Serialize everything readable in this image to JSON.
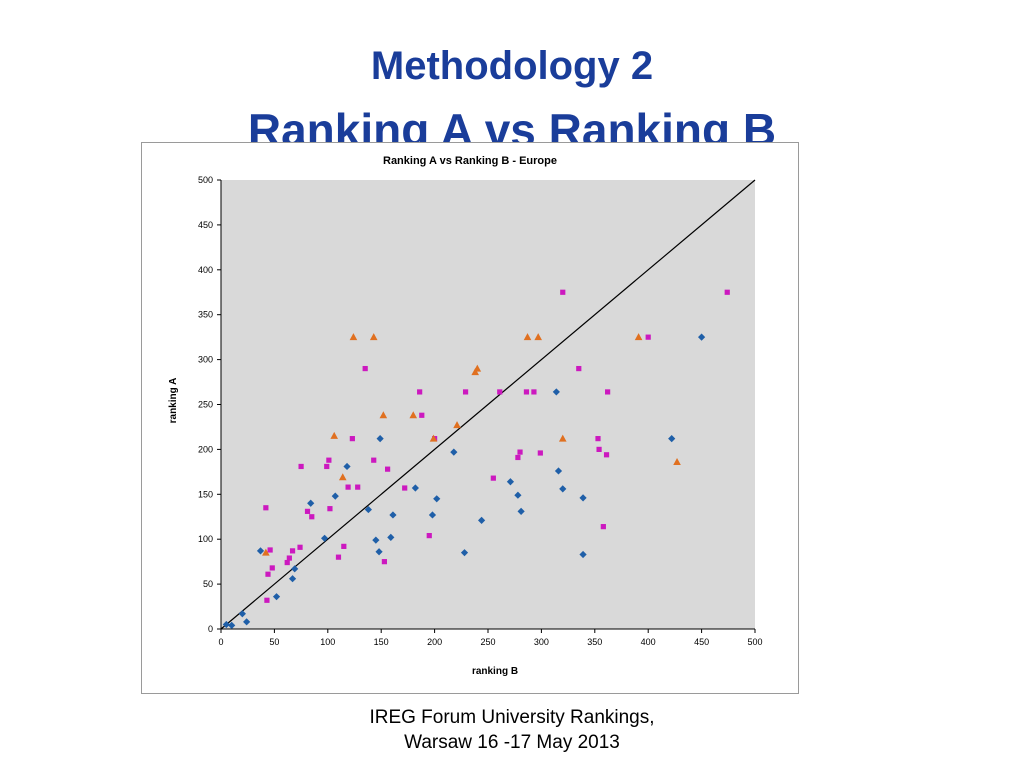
{
  "slide": {
    "title_line1": "Methodology 2",
    "title_line2": "Ranking A vs Ranking B",
    "footer_line1": "IREG Forum University Rankings,",
    "footer_line2": "Warsaw 16 -17 May 2013"
  },
  "chart_data": {
    "type": "scatter",
    "title": "Ranking A vs Ranking B - Europe",
    "xlabel": "ranking B",
    "ylabel": "ranking A",
    "xlim": [
      0,
      500
    ],
    "ylim": [
      0,
      500
    ],
    "xticks": [
      0,
      50,
      100,
      150,
      200,
      250,
      300,
      350,
      400,
      450,
      500
    ],
    "yticks": [
      0,
      50,
      100,
      150,
      200,
      250,
      300,
      350,
      400,
      450,
      500
    ],
    "plot_background": "#d9d9d9",
    "legend": "none",
    "reference_line": {
      "from": [
        0,
        0
      ],
      "to": [
        500,
        500
      ],
      "color": "#000000"
    },
    "series": [
      {
        "marker": "diamond",
        "color": "#1f5fa8",
        "points": [
          [
            5,
            5
          ],
          [
            10,
            4
          ],
          [
            20,
            17
          ],
          [
            24,
            8
          ],
          [
            37,
            87
          ],
          [
            52,
            36
          ],
          [
            67,
            56
          ],
          [
            69,
            67
          ],
          [
            84,
            140
          ],
          [
            97,
            101
          ],
          [
            107,
            148
          ],
          [
            118,
            181
          ],
          [
            138,
            133
          ],
          [
            145,
            99
          ],
          [
            148,
            86
          ],
          [
            149,
            212
          ],
          [
            159,
            102
          ],
          [
            161,
            127
          ],
          [
            182,
            157
          ],
          [
            198,
            127
          ],
          [
            202,
            145
          ],
          [
            218,
            197
          ],
          [
            228,
            85
          ],
          [
            244,
            121
          ],
          [
            271,
            164
          ],
          [
            278,
            149
          ],
          [
            281,
            131
          ],
          [
            314,
            264
          ],
          [
            316,
            176
          ],
          [
            320,
            156
          ],
          [
            339,
            146
          ],
          [
            339,
            83
          ],
          [
            422,
            212
          ],
          [
            450,
            325
          ]
        ]
      },
      {
        "marker": "square",
        "color": "#cc19bf",
        "points": [
          [
            42,
            135
          ],
          [
            43,
            32
          ],
          [
            44,
            61
          ],
          [
            46,
            88
          ],
          [
            48,
            68
          ],
          [
            62,
            74
          ],
          [
            64,
            79
          ],
          [
            67,
            87
          ],
          [
            74,
            91
          ],
          [
            75,
            181
          ],
          [
            81,
            131
          ],
          [
            85,
            125
          ],
          [
            99,
            181
          ],
          [
            101,
            188
          ],
          [
            102,
            134
          ],
          [
            110,
            80
          ],
          [
            115,
            92
          ],
          [
            119,
            158
          ],
          [
            123,
            212
          ],
          [
            128,
            158
          ],
          [
            135,
            290
          ],
          [
            143,
            188
          ],
          [
            153,
            75
          ],
          [
            156,
            178
          ],
          [
            172,
            157
          ],
          [
            186,
            264
          ],
          [
            188,
            238
          ],
          [
            195,
            104
          ],
          [
            200,
            212
          ],
          [
            229,
            264
          ],
          [
            255,
            168
          ],
          [
            261,
            264
          ],
          [
            278,
            191
          ],
          [
            280,
            197
          ],
          [
            286,
            264
          ],
          [
            293,
            264
          ],
          [
            299,
            196
          ],
          [
            320,
            375
          ],
          [
            335,
            290
          ],
          [
            353,
            212
          ],
          [
            354,
            200
          ],
          [
            358,
            114
          ],
          [
            361,
            194
          ],
          [
            362,
            264
          ],
          [
            400,
            325
          ],
          [
            474,
            375
          ]
        ]
      },
      {
        "marker": "triangle",
        "color": "#e07020",
        "points": [
          [
            42,
            85
          ],
          [
            106,
            215
          ],
          [
            114,
            169
          ],
          [
            124,
            325
          ],
          [
            143,
            325
          ],
          [
            152,
            238
          ],
          [
            180,
            238
          ],
          [
            199,
            212
          ],
          [
            221,
            227
          ],
          [
            238,
            286
          ],
          [
            240,
            290
          ],
          [
            287,
            325
          ],
          [
            297,
            325
          ],
          [
            320,
            212
          ],
          [
            391,
            325
          ],
          [
            427,
            186
          ]
        ]
      }
    ]
  }
}
